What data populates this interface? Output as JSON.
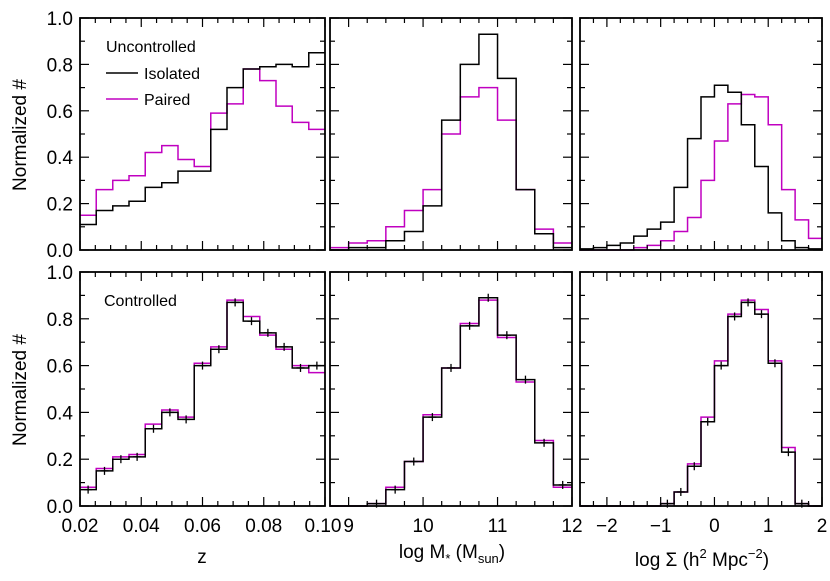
{
  "colors": {
    "isolated": "#000000",
    "paired": "#c000c0"
  },
  "row_labels": {
    "ylabel": "Normalized #",
    "uncontrolled": "Uncontrolled",
    "controlled": "Controlled"
  },
  "legend": {
    "isolated": "Isolated",
    "paired": "Paired"
  },
  "xlabels": {
    "z": "z",
    "mass_main": "log M",
    "mass_sub_star": "*",
    "mass_units_open": " (M",
    "mass_sub_sun": "sun",
    "mass_units_close": ")",
    "sigma_main": "log Σ (h",
    "sigma_sup_2": "2",
    "sigma_mid": " Mpc",
    "sigma_sup_m2": "−2",
    "sigma_close": ")"
  },
  "chart_data": [
    {
      "type": "histogram",
      "id": "uncontrolled-z",
      "xlim": [
        0.02,
        0.1
      ],
      "ylim": [
        0.0,
        1.0
      ],
      "bins": [
        0.02,
        0.0253,
        0.0307,
        0.036,
        0.0413,
        0.0467,
        0.052,
        0.0573,
        0.0627,
        0.068,
        0.0733,
        0.0787,
        0.084,
        0.0893,
        0.0947,
        0.1
      ],
      "series": [
        {
          "name": "Isolated",
          "values": [
            0.11,
            0.17,
            0.19,
            0.21,
            0.27,
            0.29,
            0.34,
            0.34,
            0.52,
            0.7,
            0.78,
            0.79,
            0.8,
            0.79,
            0.85
          ]
        },
        {
          "name": "Paired",
          "values": [
            0.15,
            0.26,
            0.3,
            0.32,
            0.42,
            0.45,
            0.39,
            0.36,
            0.59,
            0.63,
            0.78,
            0.73,
            0.62,
            0.55,
            0.52
          ]
        }
      ]
    },
    {
      "type": "histogram",
      "id": "uncontrolled-mass",
      "xlim": [
        8.75,
        12.0
      ],
      "ylim": [
        0.0,
        1.0
      ],
      "bins": [
        8.75,
        9.0,
        9.25,
        9.5,
        9.75,
        10.0,
        10.25,
        10.5,
        10.75,
        11.0,
        11.25,
        11.5,
        11.75,
        12.0
      ],
      "series": [
        {
          "name": "Isolated",
          "values": [
            0.0,
            0.01,
            0.01,
            0.04,
            0.08,
            0.19,
            0.56,
            0.8,
            0.93,
            0.74,
            0.26,
            0.07,
            0.01
          ]
        },
        {
          "name": "Paired",
          "values": [
            0.01,
            0.03,
            0.04,
            0.1,
            0.17,
            0.26,
            0.5,
            0.66,
            0.7,
            0.56,
            0.26,
            0.09,
            0.03
          ]
        }
      ]
    },
    {
      "type": "histogram",
      "id": "uncontrolled-density",
      "xlim": [
        -2.5,
        2.0
      ],
      "ylim": [
        0.0,
        1.0
      ],
      "bins": [
        -2.5,
        -2.25,
        -2.0,
        -1.75,
        -1.5,
        -1.25,
        -1.0,
        -0.75,
        -0.5,
        -0.25,
        0.0,
        0.25,
        0.5,
        0.75,
        1.0,
        1.25,
        1.5,
        1.75,
        2.0
      ],
      "series": [
        {
          "name": "Isolated",
          "values": [
            0.005,
            0.01,
            0.02,
            0.03,
            0.06,
            0.09,
            0.12,
            0.27,
            0.48,
            0.66,
            0.71,
            0.68,
            0.54,
            0.36,
            0.16,
            0.04,
            0.01,
            0.005
          ]
        },
        {
          "name": "Paired",
          "values": [
            0.0,
            0.0,
            0.0,
            0.0,
            0.01,
            0.02,
            0.04,
            0.08,
            0.14,
            0.3,
            0.47,
            0.63,
            0.67,
            0.66,
            0.54,
            0.26,
            0.13,
            0.05
          ]
        }
      ]
    },
    {
      "type": "histogram",
      "id": "controlled-z",
      "xlim": [
        0.02,
        0.1
      ],
      "ylim": [
        0.0,
        1.0
      ],
      "bins": [
        0.02,
        0.0253,
        0.0307,
        0.036,
        0.0413,
        0.0467,
        0.052,
        0.0573,
        0.0627,
        0.068,
        0.0733,
        0.0787,
        0.084,
        0.0893,
        0.0947,
        0.1
      ],
      "errorbars": true,
      "series": [
        {
          "name": "Isolated",
          "values": [
            0.07,
            0.15,
            0.2,
            0.21,
            0.33,
            0.4,
            0.37,
            0.6,
            0.67,
            0.87,
            0.79,
            0.74,
            0.68,
            0.59,
            0.6
          ]
        },
        {
          "name": "Paired",
          "values": [
            0.08,
            0.16,
            0.21,
            0.22,
            0.35,
            0.41,
            0.38,
            0.61,
            0.68,
            0.88,
            0.81,
            0.73,
            0.67,
            0.6,
            0.57
          ]
        }
      ]
    },
    {
      "type": "histogram",
      "id": "controlled-mass",
      "xlim": [
        8.75,
        12.0
      ],
      "ylim": [
        0.0,
        1.0
      ],
      "bins": [
        8.75,
        9.0,
        9.25,
        9.5,
        9.75,
        10.0,
        10.25,
        10.5,
        10.75,
        11.0,
        11.25,
        11.5,
        11.75,
        12.0
      ],
      "errorbars": true,
      "series": [
        {
          "name": "Isolated",
          "values": [
            0.0,
            0.0,
            0.01,
            0.07,
            0.19,
            0.38,
            0.59,
            0.77,
            0.89,
            0.73,
            0.54,
            0.27,
            0.09
          ]
        },
        {
          "name": "Paired",
          "values": [
            0.0,
            0.0,
            0.01,
            0.08,
            0.19,
            0.39,
            0.59,
            0.78,
            0.88,
            0.72,
            0.53,
            0.28,
            0.08
          ]
        }
      ]
    },
    {
      "type": "histogram",
      "id": "controlled-density",
      "xlim": [
        -2.5,
        2.0
      ],
      "ylim": [
        0.0,
        1.0
      ],
      "bins": [
        -2.5,
        -2.25,
        -2.0,
        -1.75,
        -1.5,
        -1.25,
        -1.0,
        -0.75,
        -0.5,
        -0.25,
        0.0,
        0.25,
        0.5,
        0.75,
        1.0,
        1.25,
        1.5,
        1.75,
        2.0
      ],
      "errorbars": true,
      "series": [
        {
          "name": "Isolated",
          "values": [
            0.0,
            0.0,
            0.0,
            0.0,
            0.0,
            0.0,
            0.01,
            0.06,
            0.17,
            0.36,
            0.6,
            0.81,
            0.87,
            0.82,
            0.61,
            0.23,
            0.01,
            0.0
          ]
        },
        {
          "name": "Paired",
          "values": [
            0.0,
            0.0,
            0.0,
            0.0,
            0.0,
            0.0,
            0.01,
            0.06,
            0.18,
            0.38,
            0.62,
            0.82,
            0.88,
            0.84,
            0.62,
            0.25,
            0.01,
            0.0
          ]
        }
      ]
    }
  ],
  "x_ticks": {
    "z": {
      "labels": [
        "0.02",
        "0.04",
        "0.06",
        "0.08",
        "0.10"
      ],
      "values": [
        0.02,
        0.04,
        0.06,
        0.08,
        0.1
      ],
      "minor": 0.005
    },
    "mass": {
      "labels": [
        "9",
        "10",
        "11",
        "12"
      ],
      "values": [
        9,
        10,
        11,
        12
      ],
      "minor": 0.25
    },
    "density": {
      "labels": [
        "−2",
        "−1",
        "0",
        "1",
        "2"
      ],
      "values": [
        -2,
        -1,
        0,
        1,
        2
      ],
      "minor": 0.25
    }
  },
  "y_ticks": {
    "labels": [
      "0.0",
      "0.2",
      "0.4",
      "0.6",
      "0.8",
      "1.0"
    ],
    "values": [
      0.0,
      0.2,
      0.4,
      0.6,
      0.8,
      1.0
    ]
  }
}
